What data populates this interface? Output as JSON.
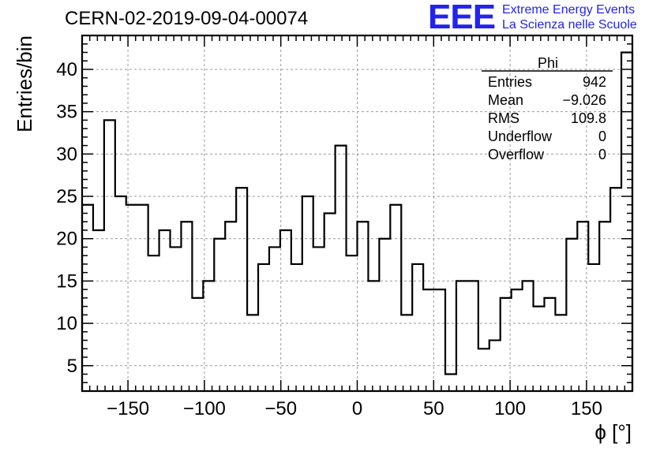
{
  "header": {
    "title": "CERN-02-2019-09-04-00074",
    "logo_mark": "EEE",
    "logo_line1": "Extreme Energy Events",
    "logo_line2": "La Scienza nelle Scuole"
  },
  "stats_box": {
    "name": "Phi",
    "rows": [
      {
        "label": "Entries",
        "value": "942"
      },
      {
        "label": "Mean",
        "value": "−9.026"
      },
      {
        "label": "RMS",
        "value": "109.8"
      },
      {
        "label": "Underflow",
        "value": "0"
      },
      {
        "label": "Overflow",
        "value": "0"
      }
    ]
  },
  "colors": {
    "logo": "#2323f0",
    "histogram": "#000000",
    "grid": "#999999"
  },
  "chart_data": {
    "type": "histogram",
    "xlabel": "ϕ [°]",
    "ylabel": "Entries/bin",
    "xlim": [
      -180,
      180
    ],
    "ylim": [
      2,
      44
    ],
    "bin_width": 7.2,
    "x_ticks": [
      -150,
      -100,
      -50,
      0,
      50,
      100,
      150
    ],
    "x_tick_labels": [
      "−150",
      "−100",
      "−50",
      "0",
      "50",
      "100",
      "150"
    ],
    "y_ticks": [
      5,
      10,
      15,
      20,
      25,
      30,
      35,
      40
    ],
    "y_tick_labels": [
      "5",
      "10",
      "15",
      "20",
      "25",
      "30",
      "35",
      "40"
    ],
    "grid": true,
    "values": [
      24,
      21,
      34,
      25,
      24,
      24,
      18,
      21,
      19,
      22,
      13,
      15,
      20,
      22,
      26,
      11,
      17,
      19,
      21,
      17,
      25,
      19,
      23,
      31,
      18,
      22,
      15,
      20,
      24,
      11,
      17,
      14,
      14,
      4,
      15,
      15,
      7,
      8,
      13,
      14,
      15,
      12,
      13,
      11,
      20,
      22,
      17,
      22,
      26,
      42
    ]
  }
}
